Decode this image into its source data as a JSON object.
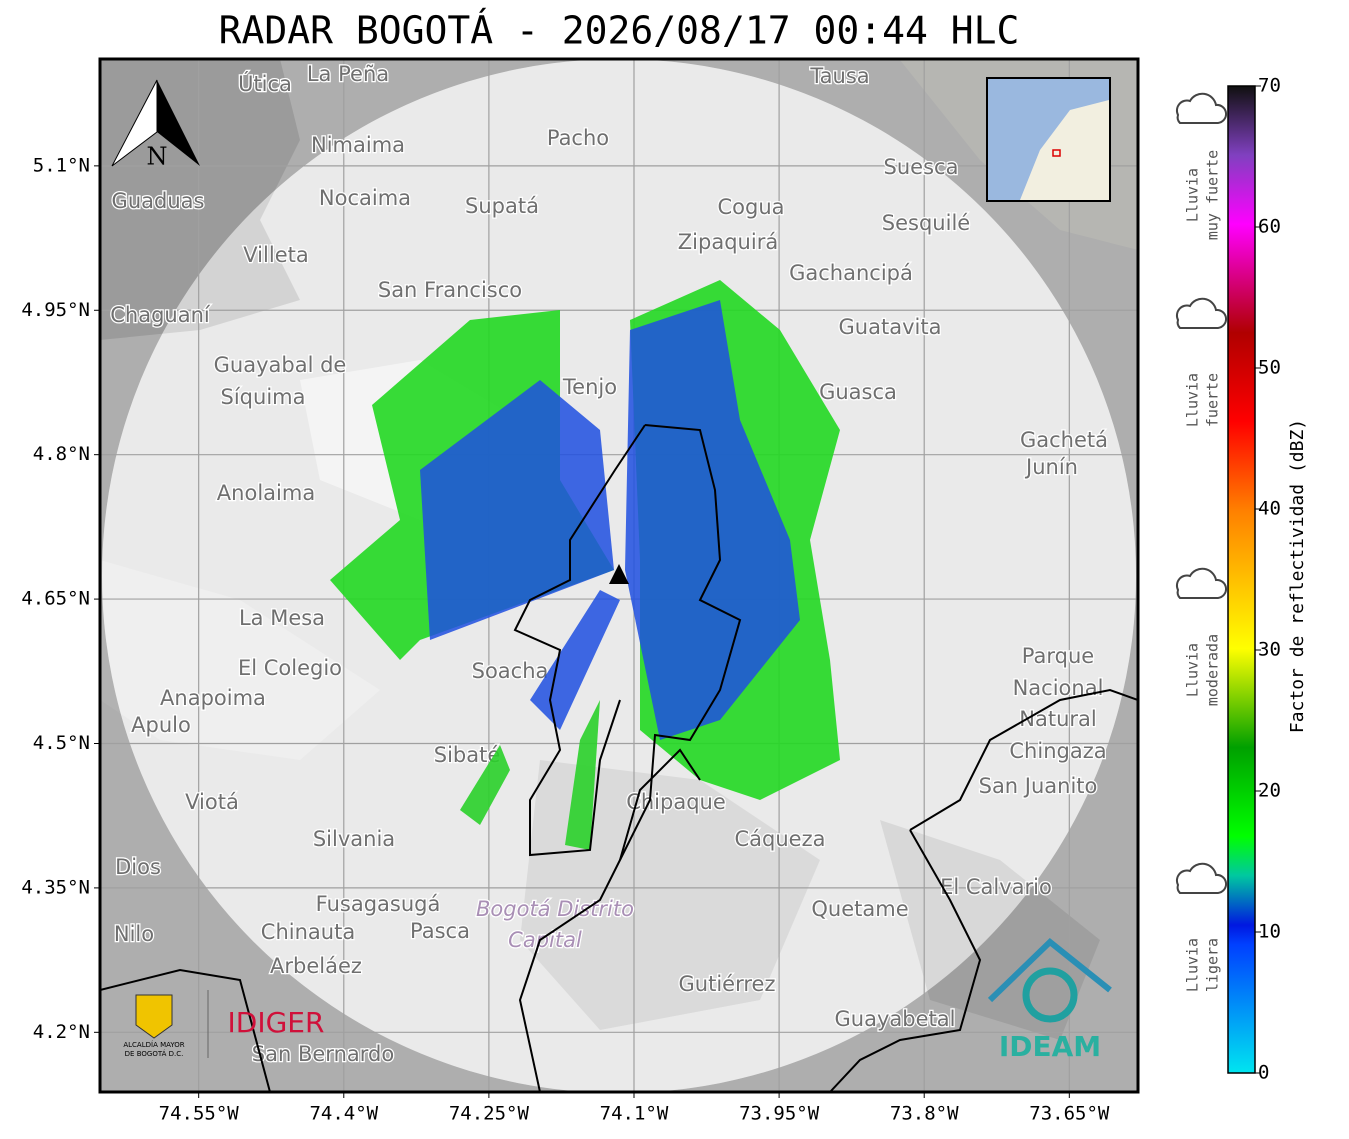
{
  "title": "RADAR BOGOTÁ - 2026/08/17 00:44 HLC",
  "map": {
    "xlim": [
      -74.652,
      -73.579
    ],
    "ylim": [
      4.138,
      5.211
    ],
    "xticks": [
      {
        "value": -74.55,
        "label": "74.55°W"
      },
      {
        "value": -74.4,
        "label": "74.4°W"
      },
      {
        "value": -74.25,
        "label": "74.25°W"
      },
      {
        "value": -74.1,
        "label": "74.1°W"
      },
      {
        "value": -73.95,
        "label": "73.95°W"
      },
      {
        "value": -73.8,
        "label": "73.8°W"
      },
      {
        "value": -73.65,
        "label": "73.65°W"
      }
    ],
    "yticks": [
      {
        "value": 5.1,
        "label": "5.1°N"
      },
      {
        "value": 4.95,
        "label": "4.95°N"
      },
      {
        "value": 4.8,
        "label": "4.8°N"
      },
      {
        "value": 4.65,
        "label": "4.65°N"
      },
      {
        "value": 4.5,
        "label": "4.5°N"
      },
      {
        "value": 4.35,
        "label": "4.35°N"
      },
      {
        "value": 4.2,
        "label": "4.2°N"
      }
    ],
    "north": "N",
    "places": [
      "La Peña",
      "Útica",
      "Tausa",
      "Pacho",
      "Nimaima",
      "Suesca",
      "Guaduas",
      "Nocaima",
      "Supatá",
      "Cogua",
      "Sesquilé",
      "Zipaquirá",
      "Villeta",
      "Gachancipá",
      "San Francisco",
      "Chaguaní",
      "Guatavita",
      "Guayabal de",
      "Síquima",
      "Tenjo",
      "Guasca",
      "Gachetá",
      "Junín",
      "Anolaima",
      "La Mesa",
      "El Colegio",
      "Soacha",
      "Parque",
      "Nacional",
      "Natural",
      "Chingaza",
      "Anapoima",
      "Apulo",
      "Sibaté",
      "San Juanito",
      "Viotá",
      "Chipaque",
      "Silvania",
      "Cáqueza",
      "Dios",
      "El Calvario",
      "Fusagasugá",
      "Quetame",
      "Nilo",
      "Chinauta",
      "Pasca",
      "Arbeláez",
      "Gutiérrez",
      "Guayabetal",
      "San Bernardo"
    ],
    "district": [
      "Bogotá Distrito",
      "Capital"
    ]
  },
  "colorbar": {
    "label": "Factor de reflectividad (dBZ)",
    "lim": [
      0,
      70
    ],
    "ticks": [
      0,
      10,
      20,
      30,
      40,
      50,
      60,
      70
    ],
    "classes": [
      [
        "Lluvia",
        "muy fuerte"
      ],
      [
        "Lluvia",
        "fuerte"
      ],
      [
        "Lluvia",
        "moderada"
      ],
      [
        "Lluvia",
        "ligera"
      ]
    ]
  },
  "logos": {
    "alcaldia": [
      "ALCALDÍA MAYOR",
      "DE BOGOTÁ D.C."
    ],
    "idiger": "IDIGER",
    "ideam": "IDEAM"
  }
}
